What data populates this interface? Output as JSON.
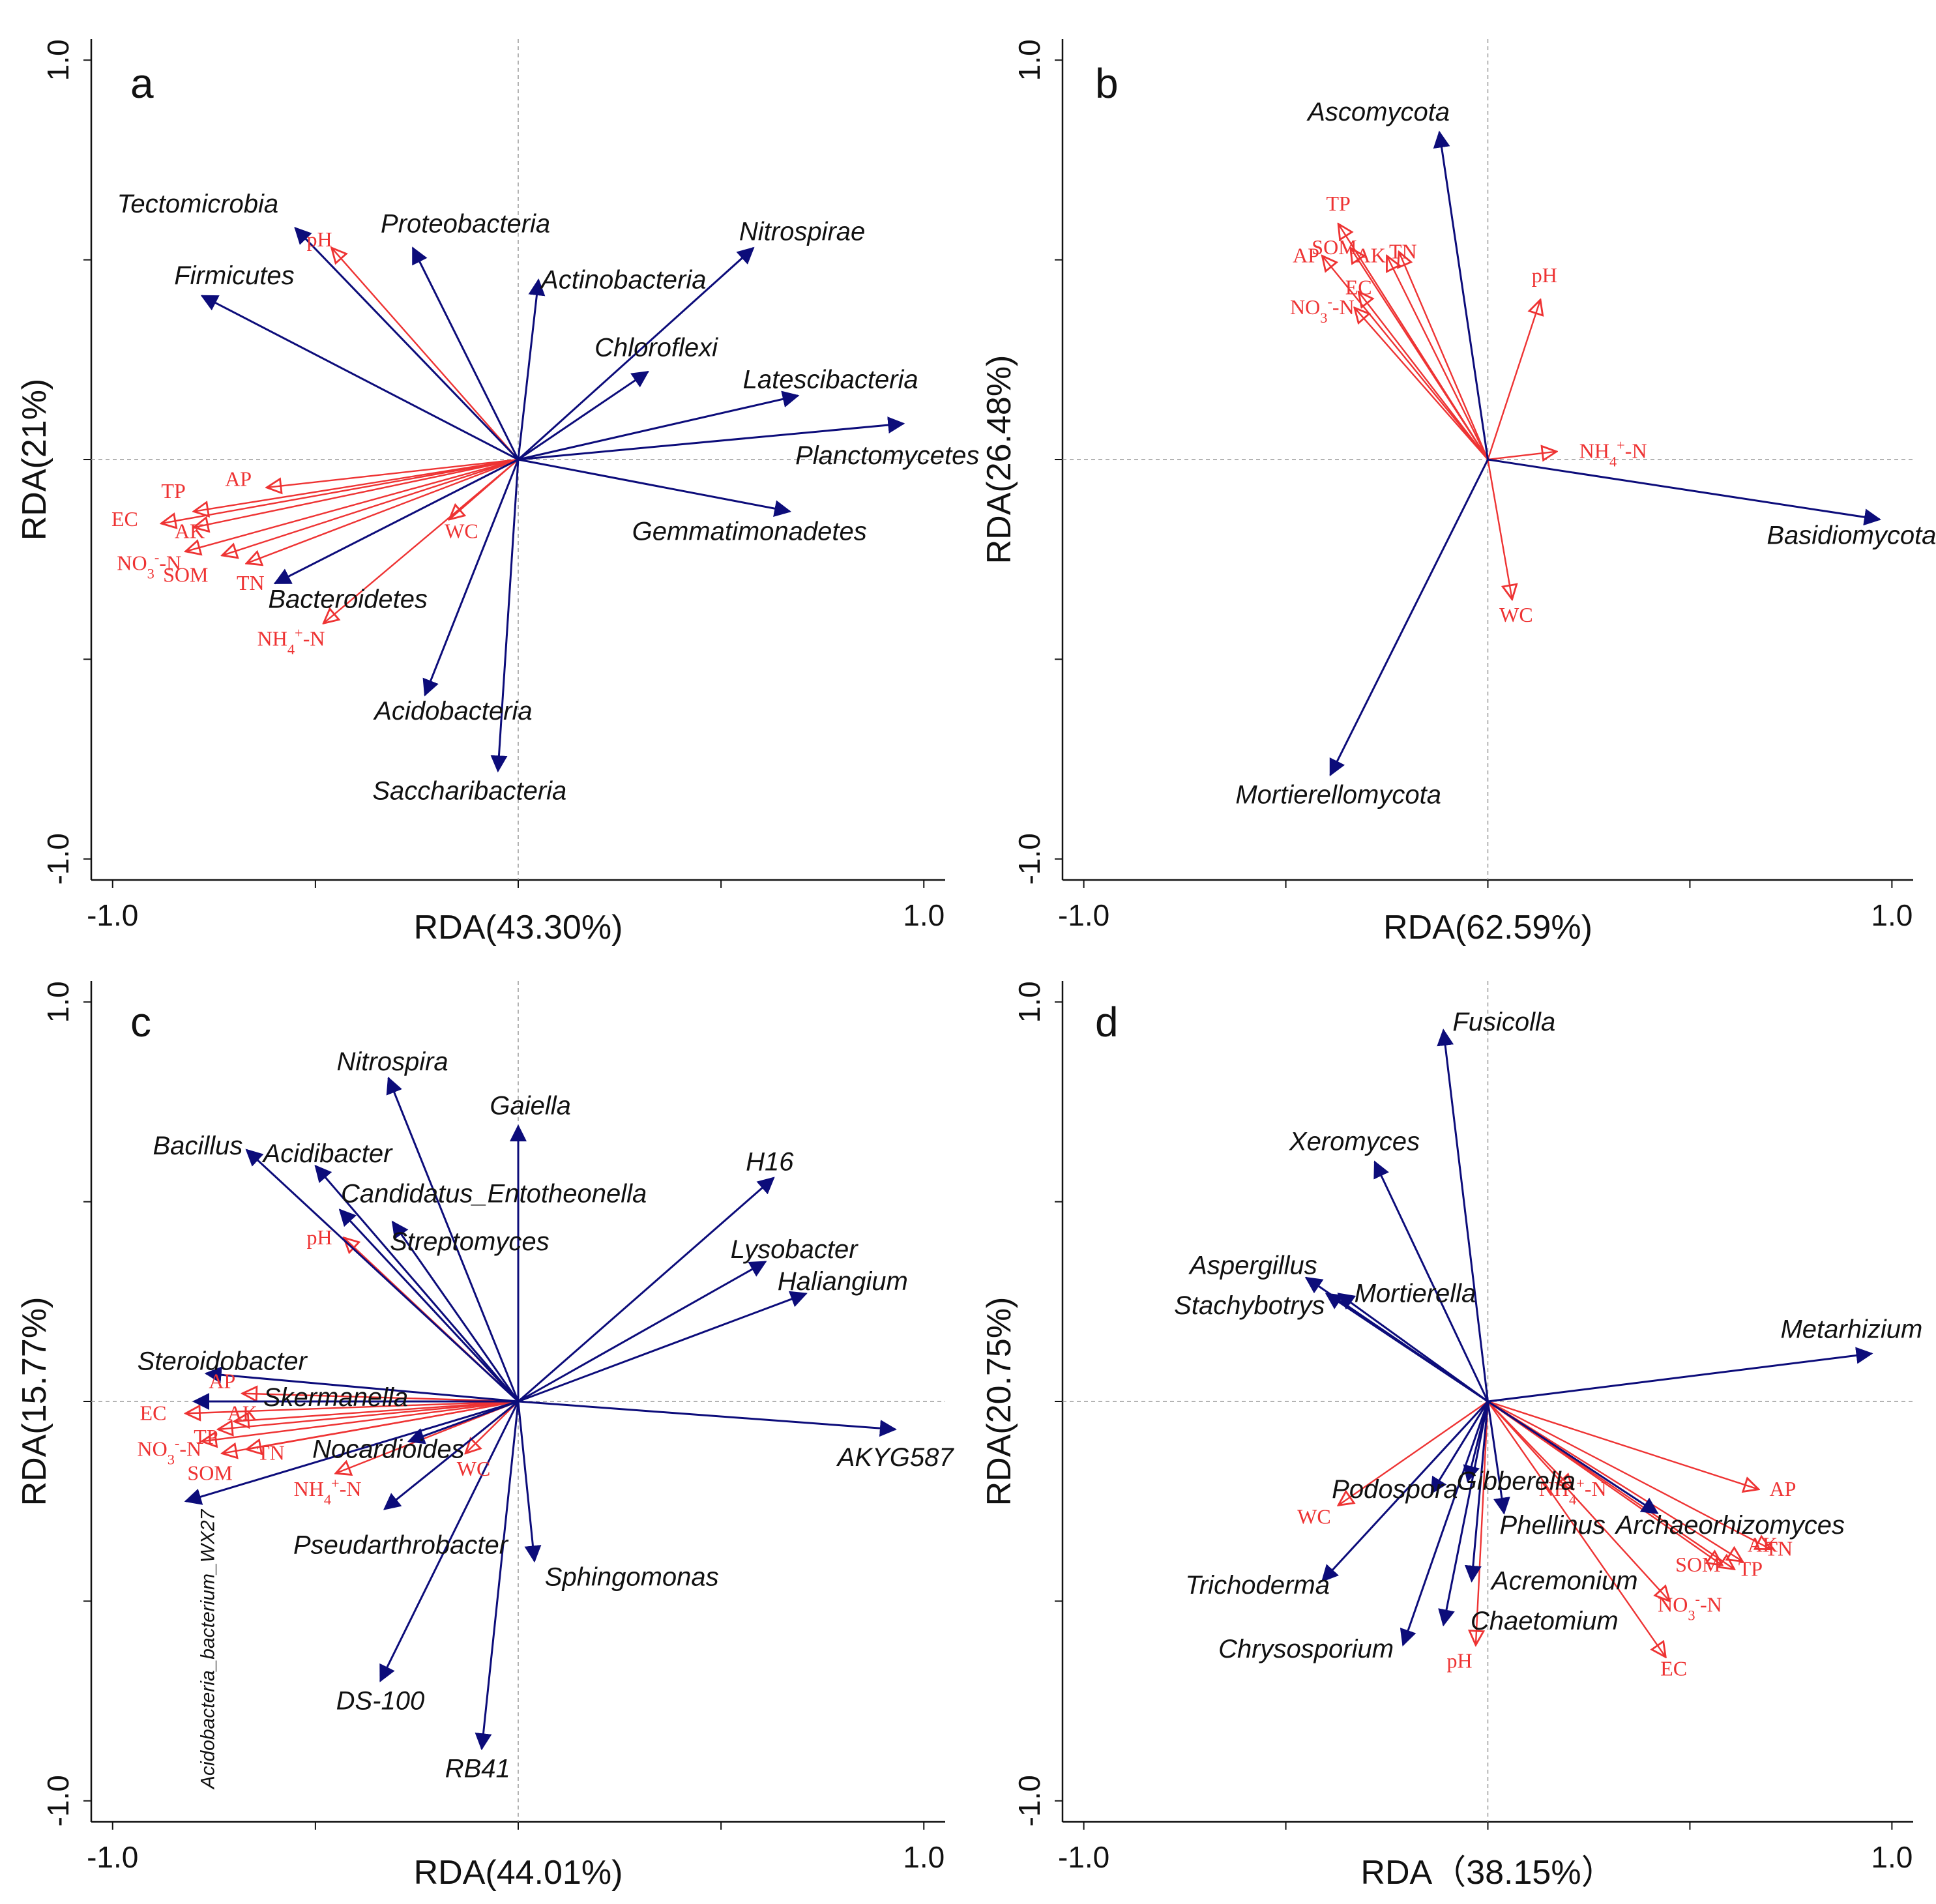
{
  "colors": {
    "species": "#0c0c7a",
    "env": "#ee3333",
    "axis": "#111111",
    "dashed": "#9a9a9a"
  },
  "chart_data": [
    {
      "type": "scatter",
      "panel": "a",
      "xlabel": "RDA(43.30%)",
      "ylabel": "RDA(21%)",
      "xlim": [
        -1.0,
        1.0
      ],
      "ylim": [
        -1.0,
        1.0
      ],
      "x_ticks": [
        {
          "v": -1,
          "label": "-1.0"
        },
        {
          "v": 1,
          "label": "1.0"
        }
      ],
      "y_ticks": [
        {
          "v": -1,
          "label": "-1.0"
        },
        {
          "v": 1,
          "label": "1.0"
        }
      ],
      "species": [
        {
          "label": "Tectomicrobia",
          "x": -0.55,
          "y": 0.58
        },
        {
          "label": "Proteobacteria",
          "x": -0.26,
          "y": 0.53
        },
        {
          "label": "Actinobacteria",
          "x": 0.05,
          "y": 0.45
        },
        {
          "label": "Nitrospirae",
          "x": 0.58,
          "y": 0.53
        },
        {
          "label": "Firmicutes",
          "x": -0.78,
          "y": 0.41
        },
        {
          "label": "Chloroflexi",
          "x": 0.32,
          "y": 0.22
        },
        {
          "label": "Latescibacteria",
          "x": 0.69,
          "y": 0.16
        },
        {
          "label": "Planctomycetes",
          "x": 0.95,
          "y": 0.09
        },
        {
          "label": "Gemmatimonadetes",
          "x": 0.67,
          "y": -0.13
        },
        {
          "label": "Bacteroidetes",
          "x": -0.6,
          "y": -0.31
        },
        {
          "label": "Acidobacteria",
          "x": -0.23,
          "y": -0.59
        },
        {
          "label": "Saccharibacteria",
          "x": -0.05,
          "y": -0.78
        }
      ],
      "env": [
        {
          "label": "pH",
          "x": -0.46,
          "y": 0.53
        },
        {
          "label": "AP",
          "x": -0.62,
          "y": -0.07
        },
        {
          "label": "TP",
          "x": -0.8,
          "y": -0.13
        },
        {
          "label": "EC",
          "x": -0.88,
          "y": -0.16
        },
        {
          "label": "AK",
          "x": -0.8,
          "y": -0.17
        },
        {
          "label": "NO3-N",
          "x": -0.82,
          "y": -0.23
        },
        {
          "label": "SOM",
          "x": -0.73,
          "y": -0.24
        },
        {
          "label": "TN",
          "x": -0.67,
          "y": -0.26
        },
        {
          "label": "NH4+-N",
          "x": -0.48,
          "y": -0.41
        },
        {
          "label": "WC",
          "x": -0.17,
          "y": -0.15
        }
      ]
    },
    {
      "type": "scatter",
      "panel": "b",
      "xlabel": "RDA(62.59%)",
      "ylabel": "RDA(26.48%)",
      "xlim": [
        -1.0,
        1.0
      ],
      "ylim": [
        -1.0,
        1.0
      ],
      "x_ticks": [
        {
          "v": -1,
          "label": "-1.0"
        },
        {
          "v": 1,
          "label": "1.0"
        }
      ],
      "y_ticks": [
        {
          "v": -1,
          "label": "-1.0"
        },
        {
          "v": 1,
          "label": "1.0"
        }
      ],
      "species": [
        {
          "label": "Ascomycota",
          "x": -0.12,
          "y": 0.82
        },
        {
          "label": "Basidiomycota",
          "x": 0.97,
          "y": -0.15
        },
        {
          "label": "Mortierellomycota",
          "x": -0.39,
          "y": -0.79
        }
      ],
      "env": [
        {
          "label": "TP",
          "x": -0.37,
          "y": 0.59
        },
        {
          "label": "AK",
          "x": -0.25,
          "y": 0.51
        },
        {
          "label": "TN",
          "x": -0.22,
          "y": 0.52
        },
        {
          "label": "SOM",
          "x": -0.34,
          "y": 0.53
        },
        {
          "label": "AP",
          "x": -0.41,
          "y": 0.51
        },
        {
          "label": "EC",
          "x": -0.32,
          "y": 0.42
        },
        {
          "label": "NO3-N",
          "x": -0.33,
          "y": 0.38
        },
        {
          "label": "pH",
          "x": 0.13,
          "y": 0.4
        },
        {
          "label": "NH4+-N",
          "x": 0.17,
          "y": 0.02
        },
        {
          "label": "WC",
          "x": 0.06,
          "y": -0.35
        }
      ]
    },
    {
      "type": "scatter",
      "panel": "c",
      "xlabel": "RDA(44.01%)",
      "ylabel": "RDA(15.77%)",
      "xlim": [
        -1.0,
        1.0
      ],
      "ylim": [
        -1.0,
        1.0
      ],
      "x_ticks": [
        {
          "v": -1,
          "label": "-1.0"
        },
        {
          "v": 1,
          "label": "1.0"
        }
      ],
      "y_ticks": [
        {
          "v": -1,
          "label": "-1.0"
        },
        {
          "v": 1,
          "label": "1.0"
        }
      ],
      "species": [
        {
          "label": "Nitrospira",
          "x": -0.32,
          "y": 0.81
        },
        {
          "label": "Gaiella",
          "x": 0.0,
          "y": 0.69
        },
        {
          "label": "Bacillus",
          "x": -0.67,
          "y": 0.63
        },
        {
          "label": "Acidibacter",
          "x": -0.5,
          "y": 0.59
        },
        {
          "label": "Candidatus_Entotheonella",
          "x": -0.44,
          "y": 0.48
        },
        {
          "label": "Streptomyces",
          "x": -0.31,
          "y": 0.45
        },
        {
          "label": "H16",
          "x": 0.63,
          "y": 0.56
        },
        {
          "label": "Lysobacter",
          "x": 0.61,
          "y": 0.35
        },
        {
          "label": "Haliangium",
          "x": 0.71,
          "y": 0.27
        },
        {
          "label": "Steroidobacter",
          "x": -0.77,
          "y": 0.07
        },
        {
          "label": "Skermanella",
          "x": -0.8,
          "y": 0.0
        },
        {
          "label": "Nocardioides",
          "x": -0.27,
          "y": -0.1
        },
        {
          "label": "Acidobacteria_bacterium_WX27",
          "x": -0.82,
          "y": -0.25
        },
        {
          "label": "Pseudarthrobacter",
          "x": -0.33,
          "y": -0.27
        },
        {
          "label": "AKYG587",
          "x": 0.93,
          "y": -0.07
        },
        {
          "label": "Sphingomonas",
          "x": 0.04,
          "y": -0.4
        },
        {
          "label": "DS-100",
          "x": -0.34,
          "y": -0.7
        },
        {
          "label": "RB41",
          "x": -0.09,
          "y": -0.87
        }
      ],
      "env": [
        {
          "label": "pH",
          "x": -0.43,
          "y": 0.41
        },
        {
          "label": "AP",
          "x": -0.68,
          "y": 0.02
        },
        {
          "label": "EC",
          "x": -0.82,
          "y": -0.03
        },
        {
          "label": "TP",
          "x": -0.74,
          "y": -0.07
        },
        {
          "label": "AK",
          "x": -0.7,
          "y": -0.05
        },
        {
          "label": "NO3-N",
          "x": -0.78,
          "y": -0.1
        },
        {
          "label": "SOM",
          "x": -0.73,
          "y": -0.13
        },
        {
          "label": "TN",
          "x": -0.67,
          "y": -0.12
        },
        {
          "label": "NH4+-N",
          "x": -0.45,
          "y": -0.18
        },
        {
          "label": "WC",
          "x": -0.13,
          "y": -0.13
        }
      ]
    },
    {
      "type": "scatter",
      "panel": "d",
      "xlabel": "RDA（38.15%）",
      "ylabel": "RDA(20.75%)",
      "xlim": [
        -1.0,
        1.0
      ],
      "ylim": [
        -1.0,
        1.0
      ],
      "x_ticks": [
        {
          "v": -1,
          "label": "-1.0"
        },
        {
          "v": 1,
          "label": "1.0"
        }
      ],
      "y_ticks": [
        {
          "v": -1,
          "label": "-1.0"
        },
        {
          "v": 1,
          "label": "1.0"
        }
      ],
      "species": [
        {
          "label": "Fusicolla",
          "x": -0.11,
          "y": 0.93
        },
        {
          "label": "Xeromyces",
          "x": -0.28,
          "y": 0.6
        },
        {
          "label": "Aspergillus",
          "x": -0.45,
          "y": 0.31
        },
        {
          "label": "Mortierella",
          "x": -0.37,
          "y": 0.27
        },
        {
          "label": "Stachybotrys",
          "x": -0.4,
          "y": 0.27
        },
        {
          "label": "Metarhizium",
          "x": 0.95,
          "y": 0.12
        },
        {
          "label": "Podospora",
          "x": -0.14,
          "y": -0.23
        },
        {
          "label": "Gibberella",
          "x": -0.05,
          "y": -0.2
        },
        {
          "label": "Phellinus",
          "x": 0.04,
          "y": -0.28
        },
        {
          "label": "Archaeorhizomyces",
          "x": 0.42,
          "y": -0.28
        },
        {
          "label": "Trichoderma",
          "x": -0.41,
          "y": -0.45
        },
        {
          "label": "Acremonium",
          "x": -0.04,
          "y": -0.45
        },
        {
          "label": "Chaetomium",
          "x": -0.11,
          "y": -0.56
        },
        {
          "label": "Chrysosporium",
          "x": -0.21,
          "y": -0.61
        }
      ],
      "env": [
        {
          "label": "WC",
          "x": -0.37,
          "y": -0.26
        },
        {
          "label": "NH4+-N",
          "x": 0.21,
          "y": -0.22
        },
        {
          "label": "AP",
          "x": 0.67,
          "y": -0.22
        },
        {
          "label": "TN",
          "x": 0.7,
          "y": -0.37
        },
        {
          "label": "AK",
          "x": 0.63,
          "y": -0.4
        },
        {
          "label": "TP",
          "x": 0.61,
          "y": -0.42
        },
        {
          "label": "SOM",
          "x": 0.58,
          "y": -0.41
        },
        {
          "label": "NO3-N",
          "x": 0.45,
          "y": -0.5
        },
        {
          "label": "EC",
          "x": 0.44,
          "y": -0.64
        },
        {
          "label": "pH",
          "x": -0.03,
          "y": -0.61
        }
      ]
    }
  ],
  "label_offsets": {
    "a": {
      "Tectomicrobia": [
        -0.24,
        0.06
      ],
      "Proteobacteria": [
        0.13,
        0.06
      ],
      "Actinobacteria": [
        0.21,
        0.0
      ],
      "Nitrospirae": [
        0.12,
        0.04
      ],
      "Firmicutes": [
        0.08,
        0.05
      ],
      "Chloroflexi": [
        0.02,
        0.06
      ],
      "Latescibacteria": [
        0.08,
        0.04
      ],
      "Planctomycetes": [
        -0.04,
        -0.08
      ],
      "Gemmatimonadetes": [
        -0.1,
        -0.05
      ],
      "Bacteroidetes": [
        0.18,
        -0.04
      ],
      "Acidobacteria": [
        0.07,
        -0.04
      ],
      "Saccharibacteria": [
        -0.07,
        -0.05
      ],
      "pH": [
        -0.03,
        0.02
      ],
      "AP": [
        -0.07,
        0.02
      ],
      "TP": [
        -0.05,
        0.05
      ],
      "EC": [
        -0.09,
        0.01
      ],
      "AK": [
        -0.01,
        -0.01
      ],
      "NO3-N": [
        -0.09,
        -0.03
      ],
      "SOM": [
        -0.09,
        -0.05
      ],
      "TN": [
        0.01,
        -0.05
      ],
      "NH4+-N": [
        -0.08,
        -0.04
      ],
      "WC": [
        0.03,
        -0.03
      ]
    },
    "b": {
      "Ascomycota": [
        -0.15,
        0.05
      ],
      "Basidiomycota": [
        -0.07,
        -0.04
      ],
      "Mortierellomycota": [
        0.02,
        -0.05
      ],
      "TP": [
        0.0,
        0.05
      ],
      "AK": [
        -0.04,
        0.0
      ],
      "TN": [
        0.01,
        0.0
      ],
      "SOM": [
        -0.04,
        0.0
      ],
      "AP": [
        -0.04,
        0.0
      ],
      "EC": [
        0.0,
        0.01
      ],
      "NO3-N": [
        -0.08,
        0.0
      ],
      "pH": [
        0.01,
        0.06
      ],
      "NH4+-N": [
        0.14,
        0.0
      ],
      "WC": [
        0.01,
        -0.04
      ]
    },
    "c": {
      "Nitrospira": [
        0.01,
        0.04
      ],
      "Gaiella": [
        0.03,
        0.05
      ],
      "Bacillus": [
        -0.12,
        0.01
      ],
      "Acidibacter": [
        0.03,
        0.03
      ],
      "Candidatus_Entotheonella": [
        0.38,
        0.04
      ],
      "Streptomyces": [
        0.19,
        -0.05
      ],
      "H16": [
        -0.01,
        0.04
      ],
      "Lysobacter": [
        0.07,
        0.03
      ],
      "Haliangium": [
        0.09,
        0.03
      ],
      "Steroidobacter": [
        0.04,
        0.03
      ],
      "Skermanella": [
        0.35,
        0.01
      ],
      "Nocardioides": [
        -0.05,
        -0.02
      ],
      "Pseudarthrobacter": [
        0.04,
        -0.09
      ],
      "AKYG587": [
        0.0,
        -0.07
      ],
      "Sphingomonas": [
        0.24,
        -0.04
      ],
      "DS-100": [
        0.0,
        -0.05
      ],
      "RB41": [
        -0.01,
        -0.05
      ],
      "pH": [
        -0.06,
        0.0
      ],
      "AP": [
        -0.05,
        0.03
      ],
      "EC": [
        -0.08,
        0.0
      ],
      "TP": [
        -0.03,
        -0.02
      ],
      "AK": [
        0.02,
        0.02
      ],
      "NO3-N": [
        -0.08,
        -0.02
      ],
      "SOM": [
        -0.03,
        -0.05
      ],
      "TN": [
        0.06,
        -0.01
      ],
      "NH4+-N": [
        -0.02,
        -0.04
      ],
      "WC": [
        0.02,
        -0.04
      ]
    },
    "d": {
      "Fusicolla": [
        0.15,
        0.02
      ],
      "Xeromyces": [
        -0.05,
        0.05
      ],
      "Aspergillus": [
        -0.13,
        0.03
      ],
      "Mortierella": [
        0.19,
        0.0
      ],
      "Stachybotrys": [
        -0.19,
        -0.03
      ],
      "Metarhizium": [
        -0.05,
        0.06
      ],
      "Podospora": [
        -0.09,
        0.01
      ],
      "Gibberella": [
        0.12,
        0.0
      ],
      "Phellinus": [
        0.12,
        -0.03
      ],
      "Archaeorhizomyces": [
        0.18,
        -0.03
      ],
      "Trichoderma": [
        -0.16,
        -0.01
      ],
      "Acremonium": [
        0.23,
        0.0
      ],
      "Chaetomium": [
        0.25,
        0.01
      ],
      "Chrysosporium": [
        -0.24,
        -0.01
      ],
      "WC": [
        -0.06,
        -0.03
      ],
      "NH4+-N": [
        0.0,
        0.0
      ],
      "AP": [
        0.06,
        0.0
      ],
      "TN": [
        0.02,
        0.0
      ],
      "AK": [
        0.05,
        0.04
      ],
      "TP": [
        0.04,
        0.0
      ],
      "SOM": [
        -0.06,
        0.0
      ],
      "NO3-N": [
        0.05,
        -0.01
      ],
      "EC": [
        0.02,
        -0.03
      ],
      "pH": [
        -0.04,
        -0.04
      ]
    }
  }
}
